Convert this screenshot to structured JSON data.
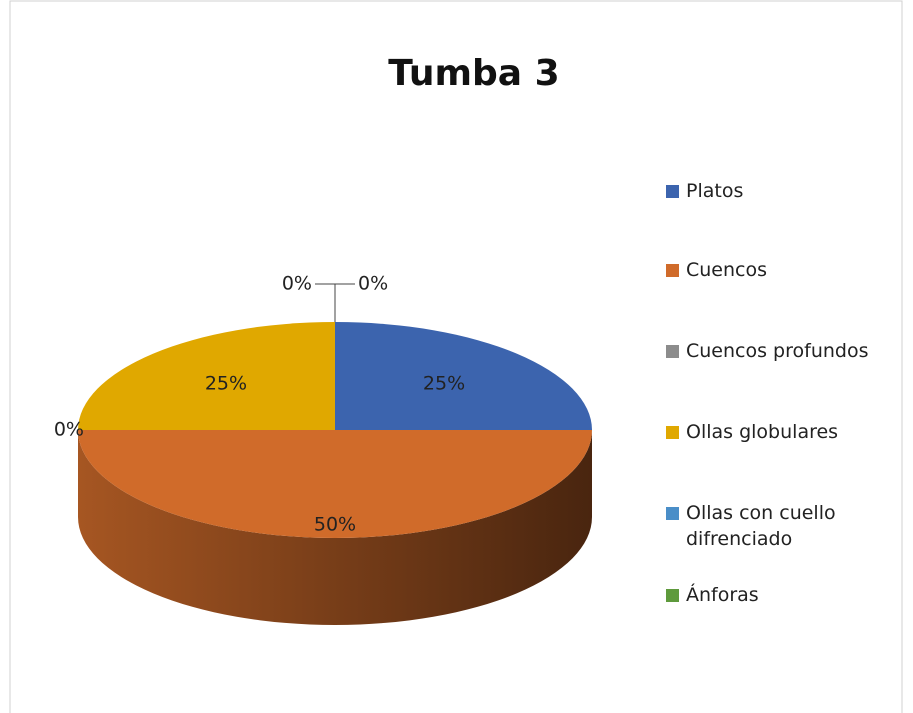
{
  "chart_data": {
    "type": "pie3d",
    "title": "Tumba 3",
    "categories": [
      "Platos",
      "Cuencos",
      "Cuencos profundos",
      "Ollas globulares",
      "Ollas con cuello difrenciado",
      "Ánforas"
    ],
    "values": [
      25,
      50,
      0,
      25,
      0,
      0
    ],
    "value_labels": [
      "25%",
      "50%",
      "0%",
      "25%",
      "0%",
      "0%"
    ],
    "colors": [
      "#3c64ae",
      "#d06b2a",
      "#8c8c8c",
      "#e0a800",
      "#4a8ec8",
      "#5e9a3c"
    ],
    "legend": "right"
  }
}
